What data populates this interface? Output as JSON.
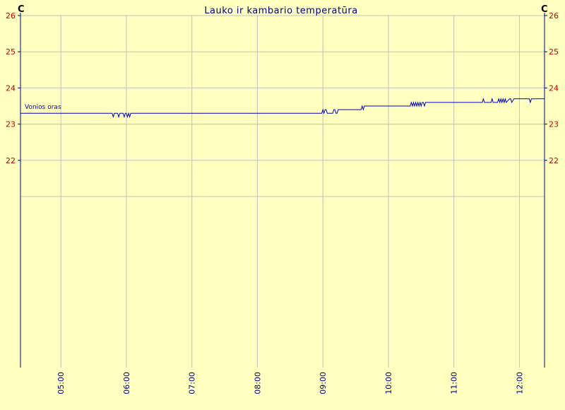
{
  "chart_data": {
    "type": "line",
    "title": "Lauko ir kambario temperatūra",
    "unit_left": "C",
    "unit_right": "C",
    "ylim": [
      21,
      26
    ],
    "yticks": [
      22,
      23,
      24,
      25,
      26
    ],
    "xlim": [
      "04:23",
      "12:23"
    ],
    "xticks": [
      "05:00",
      "06:00",
      "07:00",
      "08:00",
      "09:00",
      "10:00",
      "11:00",
      "12:00"
    ],
    "grid": true,
    "colors": {
      "background": "#ffffc0",
      "grid": "#c0c0c0",
      "axis": "#000080",
      "series": "#0000cc",
      "tick_labels": "#c00000"
    },
    "series": [
      {
        "name": "Vonios oras",
        "x": [
          "04:23",
          "05:47",
          "05:48",
          "05:49",
          "05:52",
          "05:53",
          "05:54",
          "05:57",
          "05:58",
          "05:59",
          "06:00",
          "06:01",
          "06:02",
          "06:03",
          "06:04",
          "06:05",
          "08:59",
          "09:00",
          "09:01",
          "09:02",
          "09:03",
          "09:04",
          "09:05",
          "09:09",
          "09:10",
          "09:11",
          "09:12",
          "09:13",
          "09:14",
          "09:15",
          "09:16",
          "09:35",
          "09:36",
          "09:37",
          "09:38",
          "10:20",
          "10:21",
          "10:22",
          "10:23",
          "10:24",
          "10:25",
          "10:26",
          "10:27",
          "10:28",
          "10:29",
          "10:30",
          "10:31",
          "10:32",
          "10:33",
          "10:34",
          "10:35",
          "11:26",
          "11:27",
          "11:28",
          "11:34",
          "11:35",
          "11:36",
          "11:40",
          "11:41",
          "11:42",
          "11:43",
          "11:44",
          "11:45",
          "11:46",
          "11:47",
          "11:48",
          "11:51",
          "11:52",
          "11:53",
          "11:55",
          "11:56",
          "11:57",
          "12:09",
          "12:10",
          "12:11",
          "12:23"
        ],
        "y": [
          23.3,
          23.3,
          23.2,
          23.3,
          23.3,
          23.2,
          23.3,
          23.3,
          23.2,
          23.3,
          23.3,
          23.2,
          23.3,
          23.2,
          23.3,
          23.3,
          23.3,
          23.4,
          23.3,
          23.4,
          23.4,
          23.3,
          23.3,
          23.3,
          23.4,
          23.4,
          23.3,
          23.3,
          23.4,
          23.4,
          23.4,
          23.4,
          23.5,
          23.4,
          23.5,
          23.5,
          23.6,
          23.5,
          23.6,
          23.5,
          23.6,
          23.5,
          23.6,
          23.5,
          23.6,
          23.5,
          23.6,
          23.6,
          23.5,
          23.6,
          23.6,
          23.6,
          23.7,
          23.6,
          23.6,
          23.7,
          23.6,
          23.6,
          23.7,
          23.6,
          23.7,
          23.6,
          23.7,
          23.6,
          23.7,
          23.6,
          23.7,
          23.7,
          23.6,
          23.7,
          23.7,
          23.7,
          23.7,
          23.6,
          23.7,
          23.7
        ]
      }
    ]
  }
}
